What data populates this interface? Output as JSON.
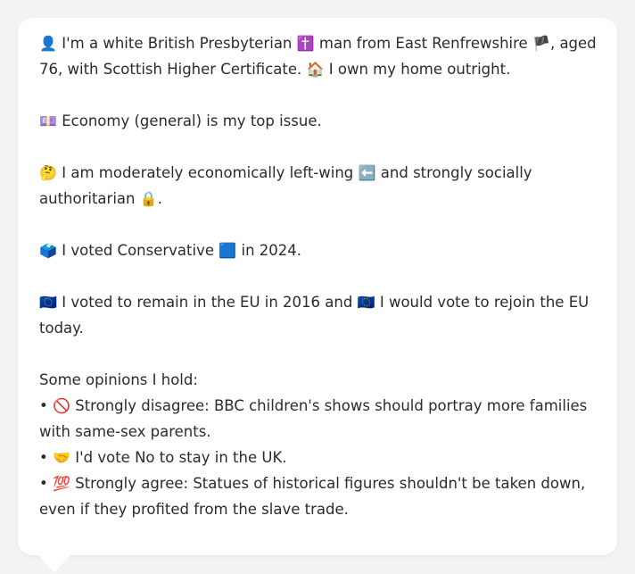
{
  "bio": {
    "line1": {
      "icon_person": "👤",
      "text_a": "I'm a white British Presbyterian",
      "icon_cross": "✝️",
      "text_b": "man from East Renfrewshire",
      "icon_flag": "🏴",
      "text_c": ", aged"
    },
    "line2": {
      "text_a": "76, with Scottish Higher Certificate.",
      "icon_house": "🏠",
      "text_b": "I own my home outright."
    }
  },
  "issue": {
    "icon": "💷",
    "text": "Economy (general) is my top issue."
  },
  "ideology": {
    "line1": {
      "icon_thinking": "🤔",
      "text_a": "I am moderately economically left-wing",
      "icon_arrow": "⬅️",
      "text_b": "and strongly socially"
    },
    "line2": {
      "text_a": "authoritarian",
      "icon_lock": "🔒",
      "text_b": "."
    }
  },
  "vote2024": {
    "icon_ballot": "🗳️",
    "text_a": "I voted Conservative",
    "icon_square": "🟦",
    "text_b": "in 2024."
  },
  "eu": {
    "line1": {
      "icon_eu_a": "🇪🇺",
      "text_a": "I voted to remain in the EU in 2016 and",
      "icon_eu_b": "🇪🇺",
      "text_b": "I would vote to rejoin the EU"
    },
    "line2": {
      "text": "today."
    }
  },
  "opinions": {
    "heading": "Some opinions I hold:",
    "bullet": "•",
    "items": [
      {
        "icon": "🚫",
        "line1": "Strongly disagree: BBC children's shows should portray more families",
        "line2": "with same-sex parents."
      },
      {
        "icon": "🤝",
        "line1": "I'd vote No to stay in the UK.",
        "line2": ""
      },
      {
        "icon": "💯",
        "line1": "Strongly agree: Statues of historical figures shouldn't be taken down,",
        "line2": "even if they profited from the slave trade."
      }
    ]
  }
}
